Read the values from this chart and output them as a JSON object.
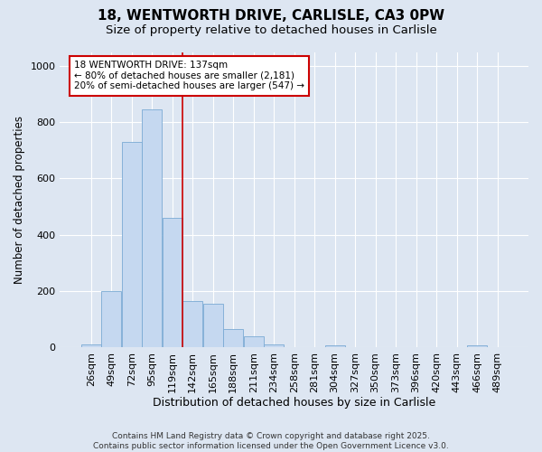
{
  "title": "18, WENTWORTH DRIVE, CARLISLE, CA3 0PW",
  "subtitle": "Size of property relative to detached houses in Carlisle",
  "xlabel": "Distribution of detached houses by size in Carlisle",
  "ylabel": "Number of detached properties",
  "bar_color": "#c5d8f0",
  "bar_edge_color": "#7aaad4",
  "background_color": "#dde6f2",
  "bins": [
    "26sqm",
    "49sqm",
    "72sqm",
    "95sqm",
    "119sqm",
    "142sqm",
    "165sqm",
    "188sqm",
    "211sqm",
    "234sqm",
    "258sqm",
    "281sqm",
    "304sqm",
    "327sqm",
    "350sqm",
    "373sqm",
    "396sqm",
    "420sqm",
    "443sqm",
    "466sqm",
    "489sqm"
  ],
  "values": [
    8,
    200,
    730,
    845,
    460,
    165,
    155,
    65,
    40,
    10,
    0,
    0,
    5,
    0,
    0,
    0,
    0,
    0,
    0,
    5,
    0
  ],
  "red_line_x": 4.5,
  "annotation_text": "18 WENTWORTH DRIVE: 137sqm\n← 80% of detached houses are smaller (2,181)\n20% of semi-detached houses are larger (547) →",
  "annotation_box_color": "#ffffff",
  "annotation_box_edge": "#cc0000",
  "red_line_color": "#cc0000",
  "ylim": [
    0,
    1050
  ],
  "yticks": [
    0,
    200,
    400,
    600,
    800,
    1000
  ],
  "footer": "Contains HM Land Registry data © Crown copyright and database right 2025.\nContains public sector information licensed under the Open Government Licence v3.0.",
  "title_fontsize": 11,
  "subtitle_fontsize": 9.5,
  "xlabel_fontsize": 9,
  "ylabel_fontsize": 8.5,
  "tick_fontsize": 8,
  "footer_fontsize": 6.5,
  "fig_facecolor": "#dde6f2"
}
